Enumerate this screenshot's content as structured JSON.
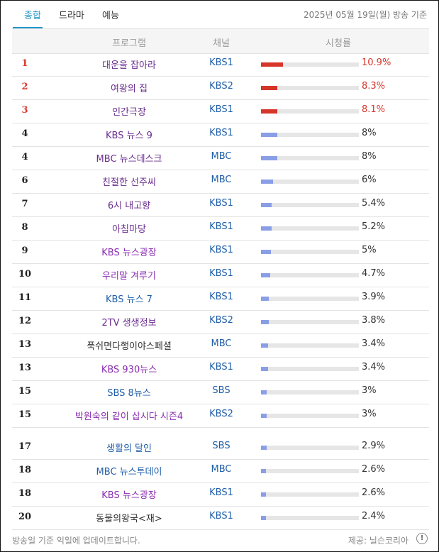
{
  "tabs": [
    {
      "label": "종합",
      "active": true
    },
    {
      "label": "드라마",
      "active": false
    },
    {
      "label": "예능",
      "active": false
    }
  ],
  "date_note": "2025년 05월 19일(월) 방송 기준",
  "columns": {
    "program": "프로그램",
    "channel": "채널",
    "rating": "시청률"
  },
  "rows": [
    {
      "rank": "1",
      "title": "대운을 잡아라",
      "channel": "KBS1",
      "rating": "10.9%",
      "value": 10.9,
      "top": true,
      "title_color": "#6a2d8f"
    },
    {
      "rank": "2",
      "title": "여왕의 집",
      "channel": "KBS2",
      "rating": "8.3%",
      "value": 8.3,
      "top": true,
      "title_color": "#6a2d8f"
    },
    {
      "rank": "3",
      "title": "인간극장",
      "channel": "KBS1",
      "rating": "8.1%",
      "value": 8.1,
      "top": true,
      "title_color": "#6a2d8f"
    },
    {
      "rank": "4",
      "title": "KBS 뉴스 9",
      "channel": "KBS1",
      "rating": "8%",
      "value": 8,
      "top": false,
      "title_color": "#6a2d8f"
    },
    {
      "rank": "4",
      "title": "MBC 뉴스데스크",
      "channel": "MBC",
      "rating": "8%",
      "value": 8,
      "top": false,
      "title_color": "#6a2d8f"
    },
    {
      "rank": "6",
      "title": "친절한 선주씨",
      "channel": "MBC",
      "rating": "6%",
      "value": 6,
      "top": false,
      "title_color": "#6a2d8f"
    },
    {
      "rank": "7",
      "title": "6시 내고향",
      "channel": "KBS1",
      "rating": "5.4%",
      "value": 5.4,
      "top": false,
      "title_color": "#6a2d8f"
    },
    {
      "rank": "8",
      "title": "아침마당",
      "channel": "KBS1",
      "rating": "5.2%",
      "value": 5.2,
      "top": false,
      "title_color": "#6a2d8f"
    },
    {
      "rank": "9",
      "title": "KBS 뉴스광장",
      "channel": "KBS1",
      "rating": "5%",
      "value": 5,
      "top": false,
      "title_color": "#8a2db0"
    },
    {
      "rank": "10",
      "title": "우리말 겨루기",
      "channel": "KBS1",
      "rating": "4.7%",
      "value": 4.7,
      "top": false,
      "title_color": "#8a2db0"
    },
    {
      "rank": "11",
      "title": "KBS 뉴스 7",
      "channel": "KBS1",
      "rating": "3.9%",
      "value": 3.9,
      "top": false,
      "title_color": "#1f5ea8"
    },
    {
      "rank": "12",
      "title": "2TV 생생정보",
      "channel": "KBS2",
      "rating": "3.8%",
      "value": 3.8,
      "top": false,
      "title_color": "#6a2d8f"
    },
    {
      "rank": "13",
      "title": "푹쉬면다행이야스페셜",
      "channel": "MBC",
      "rating": "3.4%",
      "value": 3.4,
      "top": false,
      "title_color": "#333333"
    },
    {
      "rank": "13",
      "title": "KBS 930뉴스",
      "channel": "KBS1",
      "rating": "3.4%",
      "value": 3.4,
      "top": false,
      "title_color": "#8a2db0"
    },
    {
      "rank": "15",
      "title": "SBS 8뉴스",
      "channel": "SBS",
      "rating": "3%",
      "value": 3,
      "top": false,
      "title_color": "#1f5ea8"
    },
    {
      "rank": "15",
      "title": "박원숙의 같이 삽시다 시즌4",
      "channel": "KBS2",
      "rating": "3%",
      "value": 3,
      "top": false,
      "title_color": "#8a2db0"
    },
    {
      "rank": "17",
      "title": "생활의 달인",
      "channel": "SBS",
      "rating": "2.9%",
      "value": 2.9,
      "top": false,
      "title_color": "#1f5ea8"
    },
    {
      "rank": "18",
      "title": "MBC 뉴스투데이",
      "channel": "MBC",
      "rating": "2.6%",
      "value": 2.6,
      "top": false,
      "title_color": "#1f5ea8"
    },
    {
      "rank": "18",
      "title": "KBS 뉴스광장",
      "channel": "KBS1",
      "rating": "2.6%",
      "value": 2.6,
      "top": false,
      "title_color": "#8a2db0"
    },
    {
      "rank": "20",
      "title": "동물의왕국<재>",
      "channel": "KBS1",
      "rating": "2.4%",
      "value": 2.4,
      "top": false,
      "title_color": "#333333"
    }
  ],
  "footer_note": "방송일 기준 익일에 업데이트합니다.",
  "provider": "제공: 닐슨코리아",
  "colors": {
    "accent": "#2196c9",
    "top_rank": "#d6352a",
    "bar": "#8a9ee6",
    "channel": "#1f5ea8"
  }
}
